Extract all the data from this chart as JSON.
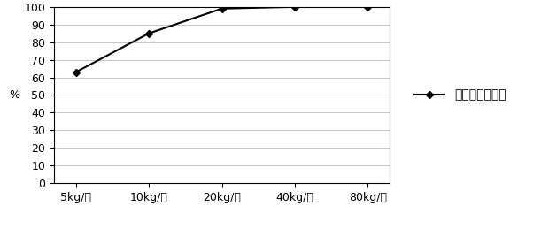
{
  "categories": [
    "5kg/亩",
    "10kg/亩",
    "20kg/亩",
    "40kg/亩",
    "80kg/亩"
  ],
  "values": [
    63,
    85,
    99,
    100,
    100
  ],
  "line_color": "#000000",
  "marker": "D",
  "marker_size": 4,
  "ylabel": "%",
  "ylim": [
    0,
    100
  ],
  "yticks": [
    0,
    10,
    20,
    30,
    40,
    50,
    60,
    70,
    80,
    90,
    100
  ],
  "legend_label": "多氯联苯去除率",
  "grid_color": "#bbbbbb",
  "background_color": "#ffffff",
  "line_width": 1.5,
  "tick_font_size": 9,
  "ylabel_font_size": 9,
  "legend_font_size": 10
}
